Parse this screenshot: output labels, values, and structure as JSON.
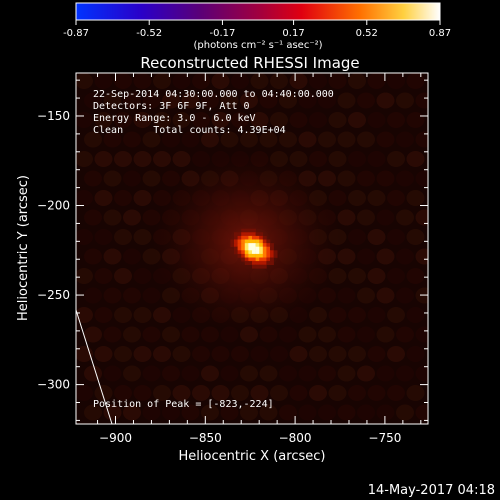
{
  "colorbar": {
    "ticks": [
      "-0.87",
      "-0.52",
      "-0.17",
      "0.17",
      "0.52",
      "0.87"
    ],
    "units": "(photons cm⁻² s⁻¹ asec⁻²)",
    "range": [
      -0.87,
      0.87
    ]
  },
  "chart_data": {
    "type": "heatmap",
    "title": "Reconstructed RHESSI Image",
    "xlabel": "Heliocentric X (arcsec)",
    "ylabel": "Heliocentric Y (arcsec)",
    "xlim": [
      -922,
      -726
    ],
    "ylim": [
      -322,
      -126
    ],
    "xticks": [
      -900,
      -850,
      -800,
      -750
    ],
    "yticks": [
      -150,
      -200,
      -250,
      -300
    ],
    "peak": {
      "x": -823,
      "y": -224,
      "value": 0.87
    },
    "grid": false
  },
  "annotations": {
    "time_range": "22-Sep-2014 04:30:00.000 to 04:40:00.000",
    "detectors": "Detectors: 3F 6F 9F, Att 0",
    "energy": "Energy Range: 3.0 - 6.0 keV",
    "algorithm": "Clean     Total counts: 4.39E+04",
    "peak_position": "Position of Peak = [-823,-224]"
  },
  "footer": {
    "timestamp": "14-May-2017 04:18"
  },
  "colors": {
    "background": "#000000",
    "axes": "#ffffff"
  }
}
